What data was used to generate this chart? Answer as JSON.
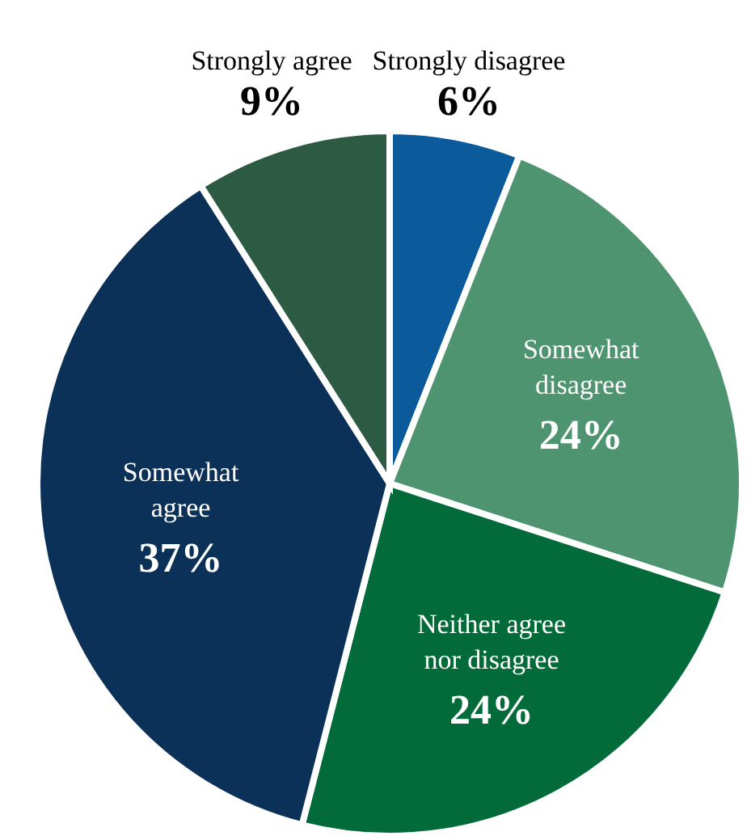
{
  "chart_data": {
    "type": "pie",
    "categories": [
      "Strongly disagree",
      "Somewhat disagree",
      "Neither agree nor disagree",
      "Somewhat agree",
      "Strongly agree"
    ],
    "values": [
      6,
      24,
      24,
      37,
      9
    ],
    "value_labels": [
      "6%",
      "24%",
      "24%",
      "37%",
      "9%"
    ],
    "colors": [
      "#0a5a9c",
      "#4e9470",
      "#036b3a",
      "#0b3158",
      "#2c5a42"
    ]
  }
}
